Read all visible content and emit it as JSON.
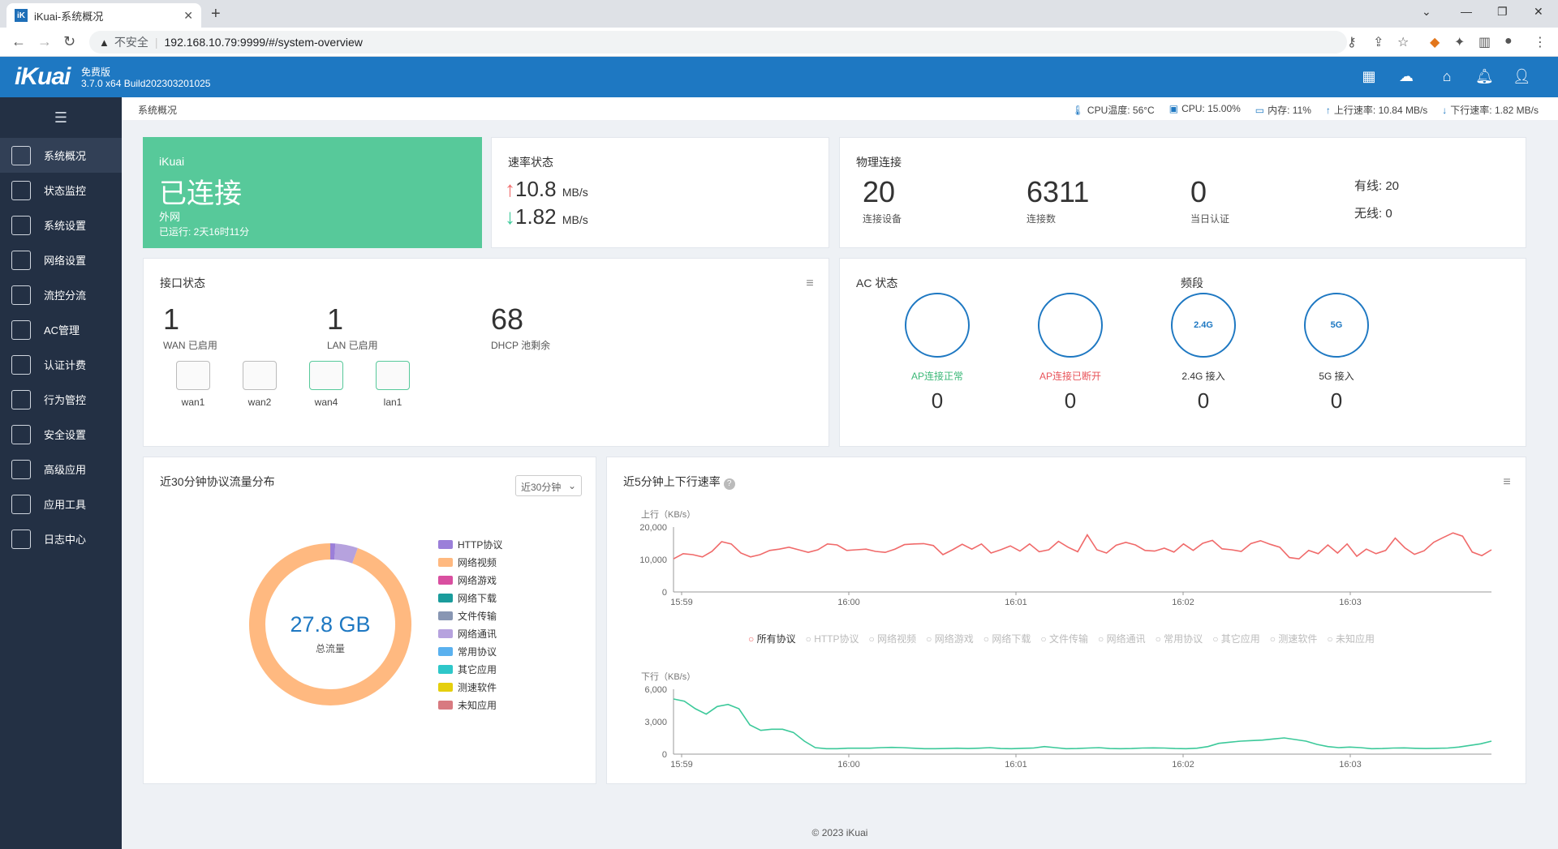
{
  "browser": {
    "tab_title": "iKuai-系统概况",
    "favicon_text": "iK",
    "new_tab": "+",
    "insecure_label": "不安全",
    "url": "192.168.10.79:9999/#/system-overview"
  },
  "header": {
    "logo": "iKuai",
    "edition": "免费版",
    "version": "3.7.0 x64 Build202303201025"
  },
  "sidebar": {
    "items": [
      {
        "label": "系统概况",
        "icon": "dashboard-icon",
        "active": true
      },
      {
        "label": "状态监控",
        "icon": "monitor-icon"
      },
      {
        "label": "系统设置",
        "icon": "settings-icon"
      },
      {
        "label": "网络设置",
        "icon": "network-icon"
      },
      {
        "label": "流控分流",
        "icon": "flow-icon"
      },
      {
        "label": "AC管理",
        "icon": "ac-icon"
      },
      {
        "label": "认证计费",
        "icon": "auth-icon"
      },
      {
        "label": "行为管控",
        "icon": "behavior-icon"
      },
      {
        "label": "安全设置",
        "icon": "security-icon"
      },
      {
        "label": "高级应用",
        "icon": "advanced-icon"
      },
      {
        "label": "应用工具",
        "icon": "tools-icon"
      },
      {
        "label": "日志中心",
        "icon": "log-icon"
      }
    ]
  },
  "statusbar": {
    "breadcrumb": "系统概况",
    "cpu_temp": "CPU温度: 56°C",
    "cpu": "CPU: 15.00%",
    "memory": "内存: 11%",
    "upload": "上行速率: 10.84 MB/s",
    "download": "下行速率: 1.82 MB/s"
  },
  "connection": {
    "brand": "iKuai",
    "status": "已连接",
    "network": "外网",
    "uptime": "已运行: 2天16时11分"
  },
  "speed": {
    "title": "速率状态",
    "up_value": "10.8",
    "up_unit": "MB/s",
    "down_value": "1.82",
    "down_unit": "MB/s"
  },
  "physical": {
    "title": "物理连接",
    "devices": "20",
    "devices_label": "连接设备",
    "connections": "6311",
    "connections_label": "连接数",
    "auth_today": "0",
    "auth_label": "当日认证",
    "wired": "有线: 20",
    "wireless": "无线: 0"
  },
  "interfaces": {
    "title": "接口状态",
    "wan": "1",
    "wan_label": "WAN 已启用",
    "lan": "1",
    "lan_label": "LAN 已启用",
    "dhcp": "68",
    "dhcp_label": "DHCP 池剩余",
    "ports": [
      {
        "label": "wan1",
        "active": false
      },
      {
        "label": "wan2",
        "active": false
      },
      {
        "label": "wan4",
        "active": true
      },
      {
        "label": "lan1",
        "active": true
      }
    ]
  },
  "ac": {
    "title": "AC 状态",
    "band_title": "频段",
    "items": [
      {
        "label": "AP连接正常",
        "value": "0",
        "color": "#3cb878",
        "icon": "ap-online-icon",
        "badge": ""
      },
      {
        "label": "AP连接已断开",
        "value": "0",
        "color": "#e8545a",
        "icon": "ap-offline-icon",
        "badge": ""
      },
      {
        "label": "2.4G 接入",
        "value": "0",
        "color": "#333333",
        "icon": "wifi-24g-icon",
        "badge": "2.4G"
      },
      {
        "label": "5G 接入",
        "value": "0",
        "color": "#333333",
        "icon": "wifi-5g-icon",
        "badge": "5G"
      }
    ]
  },
  "protocol": {
    "title": "近30分钟协议流量分布",
    "range": "近30分钟",
    "total": "27.8 GB",
    "total_label": "总流量",
    "legend": [
      {
        "name": "HTTP协议",
        "color": "#9b7fd9"
      },
      {
        "name": "网络视频",
        "color": "#ffb980"
      },
      {
        "name": "网络游戏",
        "color": "#d94fa0"
      },
      {
        "name": "网络下载",
        "color": "#1a9c9c"
      },
      {
        "name": "文件传输",
        "color": "#8896b3"
      },
      {
        "name": "网络通讯",
        "color": "#b6a2de"
      },
      {
        "name": "常用协议",
        "color": "#5ab1ef"
      },
      {
        "name": "其它应用",
        "color": "#2ec7c9"
      },
      {
        "name": "测速软件",
        "color": "#e5cf0d"
      },
      {
        "name": "未知应用",
        "color": "#d87a80"
      }
    ]
  },
  "rate": {
    "title": "近5分钟上下行速率",
    "protocols": [
      "所有协议",
      "HTTP协议",
      "网络视频",
      "网络游戏",
      "网络下载",
      "文件传输",
      "网络通讯",
      "常用协议",
      "其它应用",
      "测速软件",
      "未知应用"
    ]
  },
  "chart_data": [
    {
      "type": "pie",
      "title": "近30分钟协议流量分布",
      "categories": [
        "网络视频",
        "网络通讯",
        "HTTP协议"
      ],
      "values": [
        94.5,
        4.5,
        1.0
      ],
      "center_text": "27.8 GB"
    },
    {
      "type": "line",
      "ylabel": "上行（KB/s）",
      "yticks": [
        "20,000",
        "10,000",
        "0"
      ],
      "ylim": [
        0,
        20000
      ],
      "xticks": [
        "15:59",
        "16:00",
        "16:01",
        "16:02",
        "16:03"
      ],
      "series": [
        {
          "name": "所有协议",
          "color": "#f06a6a",
          "values": [
            10200,
            11800,
            11500,
            10800,
            12500,
            15500,
            14800,
            12000,
            10800,
            11500,
            12800,
            13200,
            13800,
            13000,
            12200,
            13000,
            14800,
            14500,
            12800,
            13000,
            13200,
            12500,
            12200,
            13200,
            14600,
            14800,
            14900,
            14300,
            11500,
            13000,
            14700,
            13200,
            14800,
            12000,
            13000,
            14200,
            12600,
            14800,
            12400,
            13000,
            15600,
            13800,
            12400,
            17600,
            13000,
            12000,
            14400,
            15300,
            14500,
            12800,
            12600,
            13500,
            12300,
            14800,
            12800,
            15000,
            15900,
            13300,
            13000,
            12500,
            14900,
            15800,
            14700,
            13800,
            10600,
            10200,
            12800,
            11800,
            14500,
            12000,
            14800,
            11000,
            13200,
            11800,
            12800,
            16600,
            13600,
            11600,
            12700,
            15300,
            16800,
            18200,
            17200,
            12300,
            11200,
            13000
          ]
        }
      ]
    },
    {
      "type": "line",
      "ylabel": "下行（KB/s）",
      "yticks": [
        "6,000",
        "3,000",
        "0"
      ],
      "ylim": [
        0,
        6000
      ],
      "xticks": [
        "15:59",
        "16:00",
        "16:01",
        "16:02",
        "16:03"
      ],
      "series": [
        {
          "name": "所有协议",
          "color": "#3cc99a",
          "values": [
            5100,
            4900,
            4200,
            3700,
            4400,
            4600,
            4200,
            2700,
            2200,
            2300,
            2300,
            2000,
            1200,
            600,
            500,
            500,
            550,
            550,
            550,
            600,
            620,
            600,
            550,
            500,
            500,
            520,
            550,
            520,
            550,
            600,
            520,
            500,
            540,
            560,
            700,
            600,
            500,
            520,
            560,
            600,
            520,
            500,
            520,
            560,
            580,
            560,
            520,
            500,
            550,
            700,
            1000,
            1100,
            1200,
            1250,
            1300,
            1400,
            1500,
            1350,
            1200,
            900,
            700,
            600,
            650,
            600,
            500,
            520,
            560,
            580,
            540,
            520,
            540,
            560,
            650,
            800,
            950,
            1200
          ]
        }
      ]
    }
  ],
  "footer": "© 2023 iKuai"
}
